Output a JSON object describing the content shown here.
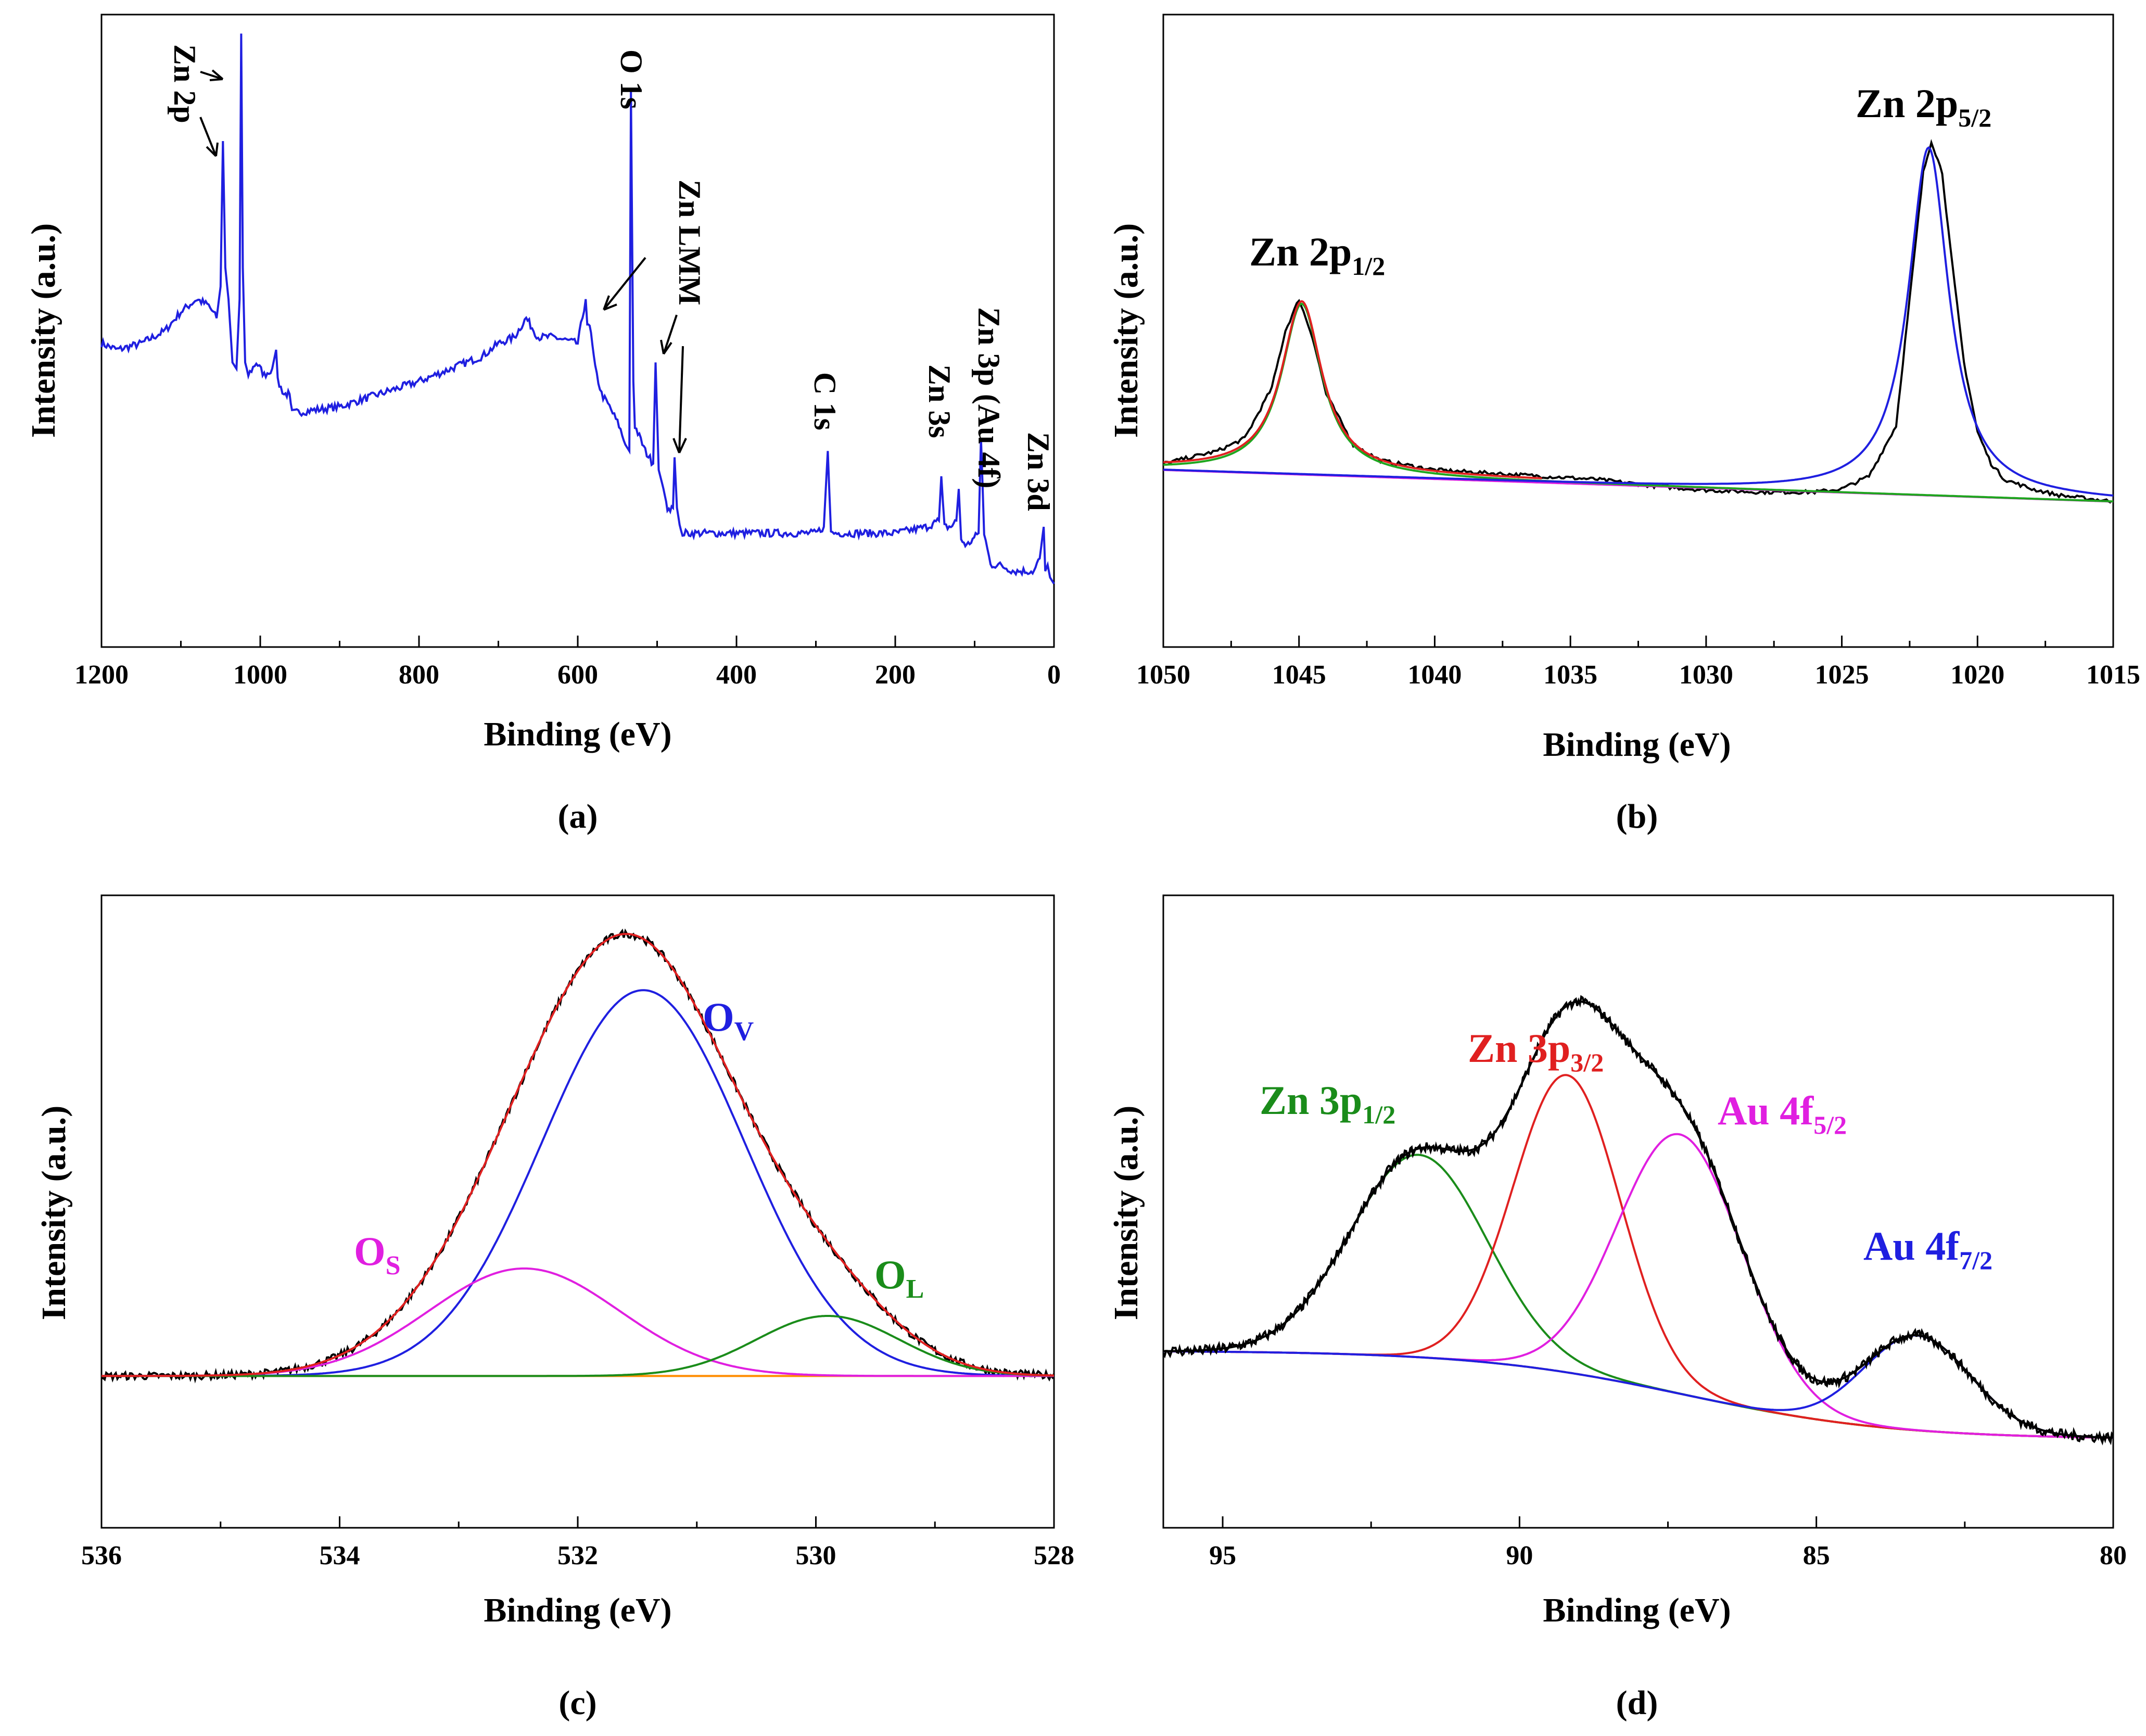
{
  "chart_data": [
    {
      "id": "a",
      "type": "line",
      "panel_label": "(a)",
      "title": "",
      "xlabel": "Binding (eV)",
      "ylabel": "Intensity (a.u.)",
      "xlim": [
        1200,
        0
      ],
      "x_ticks": [
        "1200",
        "1000",
        "800",
        "600",
        "400",
        "200",
        "0"
      ],
      "x_tick_values": [
        1200,
        1000,
        800,
        600,
        400,
        200,
        0
      ],
      "ylim": [
        0,
        100
      ],
      "y_ticks_labeled": false,
      "series": [
        {
          "name": "survey",
          "color": "#1f1fe0",
          "points": [
            [
              1200,
              48
            ],
            [
              1180,
              47
            ],
            [
              1150,
              48
            ],
            [
              1120,
              50
            ],
            [
              1100,
              53
            ],
            [
              1080,
              55
            ],
            [
              1065,
              54
            ],
            [
              1055,
              52
            ],
            [
              1050,
              57
            ],
            [
              1047,
              80
            ],
            [
              1044,
              60
            ],
            [
              1040,
              55
            ],
            [
              1035,
              45
            ],
            [
              1030,
              44
            ],
            [
              1026,
              55
            ],
            [
              1024,
              97
            ],
            [
              1022,
              60
            ],
            [
              1019,
              45
            ],
            [
              1015,
              43
            ],
            [
              1005,
              45
            ],
            [
              995,
              43
            ],
            [
              985,
              44
            ],
            [
              980,
              47
            ],
            [
              978,
              42
            ],
            [
              970,
              40
            ],
            [
              963,
              40
            ],
            [
              960,
              37
            ],
            [
              900,
              38
            ],
            [
              850,
              40
            ],
            [
              800,
              42
            ],
            [
              760,
              44
            ],
            [
              720,
              46
            ],
            [
              700,
              48
            ],
            [
              680,
              49
            ],
            [
              665,
              52
            ],
            [
              650,
              49
            ],
            [
              630,
              49
            ],
            [
              600,
              48
            ],
            [
              590,
              55
            ],
            [
              588,
              51
            ],
            [
              585,
              51
            ],
            [
              578,
              44
            ],
            [
              570,
              40
            ],
            [
              560,
              38
            ],
            [
              548,
              35
            ],
            [
              540,
              32
            ],
            [
              535,
              31
            ],
            [
              533,
              88
            ],
            [
              530,
              42
            ],
            [
              528,
              35
            ],
            [
              515,
              31
            ],
            [
              505,
              29
            ],
            [
              502,
              45
            ],
            [
              498,
              28
            ],
            [
              492,
              25
            ],
            [
              487,
              22
            ],
            [
              480,
              22
            ],
            [
              478,
              30
            ],
            [
              475,
              22
            ],
            [
              470,
              18
            ],
            [
              450,
              18
            ],
            [
              400,
              18
            ],
            [
              350,
              18
            ],
            [
              300,
              18
            ],
            [
              290,
              19
            ],
            [
              285,
              31
            ],
            [
              281,
              18
            ],
            [
              250,
              18
            ],
            [
              200,
              18
            ],
            [
              160,
              19
            ],
            [
              145,
              20
            ],
            [
              142,
              27
            ],
            [
              138,
              19
            ],
            [
              130,
              19
            ],
            [
              123,
              20
            ],
            [
              120,
              25
            ],
            [
              117,
              17
            ],
            [
              110,
              16
            ],
            [
              95,
              18
            ],
            [
              92,
              33
            ],
            [
              88,
              18
            ],
            [
              80,
              13
            ],
            [
              70,
              13
            ],
            [
              50,
              12
            ],
            [
              25,
              12
            ],
            [
              18,
              14
            ],
            [
              13,
              19
            ],
            [
              11,
              12
            ],
            [
              8,
              13
            ],
            [
              5,
              11
            ],
            [
              0,
              10
            ]
          ]
        }
      ],
      "annotations": [
        "Zn 2p",
        "O 1s",
        "Zn LMM",
        "C 1s",
        "Zn 3s",
        "Zn 3p (Au 4f)",
        "Zn 3d"
      ]
    },
    {
      "id": "b",
      "type": "line",
      "panel_label": "(b)",
      "title": "",
      "xlabel": "Binding (eV)",
      "ylabel": "Intensity (a.u.)",
      "xlim": [
        1050,
        1015
      ],
      "x_ticks": [
        "1050",
        "1045",
        "1040",
        "1035",
        "1030",
        "1025",
        "1020",
        "1015"
      ],
      "x_tick_values": [
        1050,
        1045,
        1040,
        1035,
        1030,
        1025,
        1020,
        1015
      ],
      "ylim": [
        0,
        100
      ],
      "y_ticks_labeled": false,
      "labels": {
        "zn2p12_main": "Zn 2p",
        "zn2p12_sub": "1/2",
        "zn2p52_main": "Zn 2p",
        "zn2p52_sub": "5/2"
      },
      "series": [
        {
          "name": "raw",
          "color": "#000000",
          "points": [
            [
              1050,
              29
            ],
            [
              1048,
              31
            ],
            [
              1047,
              33
            ],
            [
              1046,
              41
            ],
            [
              1045.5,
              50
            ],
            [
              1045,
              55
            ],
            [
              1044.5,
              49
            ],
            [
              1044,
              40
            ],
            [
              1043,
              32
            ],
            [
              1042,
              29.5
            ],
            [
              1040,
              28
            ],
            [
              1038,
              27.5
            ],
            [
              1036,
              27
            ],
            [
              1034,
              26.5
            ],
            [
              1032,
              25.5
            ],
            [
              1030,
              24.8
            ],
            [
              1028,
              24.5
            ],
            [
              1026,
              24.5
            ],
            [
              1025,
              25
            ],
            [
              1024,
              27
            ],
            [
              1023,
              35
            ],
            [
              1022.5,
              55
            ],
            [
              1022,
              75
            ],
            [
              1021.7,
              80
            ],
            [
              1021.3,
              75
            ],
            [
              1021,
              63
            ],
            [
              1020.5,
              45
            ],
            [
              1020,
              34
            ],
            [
              1019.5,
              29
            ],
            [
              1019,
              26.5
            ],
            [
              1018,
              25
            ],
            [
              1017,
              24
            ],
            [
              1016,
              23.5
            ],
            [
              1015,
              23
            ]
          ]
        },
        {
          "name": "Zn 2p1/2 fit",
          "color": "#1fa61f",
          "peak": {
            "center": 1044.9,
            "height": 27,
            "width": 0.9
          }
        },
        {
          "name": "Zn 2p5/2 fit",
          "color": "#1f1fe0",
          "peak": {
            "center": 1021.8,
            "height": 55,
            "width": 0.9
          }
        },
        {
          "name": "envelope",
          "color": "#e02020"
        },
        {
          "name": "background",
          "color": "#e01fe0"
        }
      ],
      "background": {
        "left": 28,
        "right": 23
      }
    },
    {
      "id": "c",
      "type": "line",
      "panel_label": "(c)",
      "title": "",
      "xlabel": "Binding (eV)",
      "ylabel": "Intensity (a.u.)",
      "xlim": [
        536,
        528
      ],
      "x_ticks": [
        "536",
        "534",
        "532",
        "530",
        "528"
      ],
      "x_tick_values": [
        536,
        534,
        532,
        530,
        528
      ],
      "ylim": [
        0,
        100
      ],
      "y_ticks_labeled": false,
      "labels": {
        "ov_main": "O",
        "ov_sub": "V",
        "os_main": "O",
        "os_sub": "S",
        "ol_main": "O",
        "ol_sub": "L"
      },
      "baseline": 24,
      "series": [
        {
          "name": "O_V",
          "color": "#1f1fe0",
          "peak": {
            "center": 531.45,
            "height": 61,
            "width": 0.85
          }
        },
        {
          "name": "O_S",
          "color": "#e01fe0",
          "peak": {
            "center": 532.45,
            "height": 17,
            "width": 0.8
          }
        },
        {
          "name": "O_L",
          "color": "#1a8c1a",
          "peak": {
            "center": 529.9,
            "height": 9.5,
            "width": 0.6
          }
        },
        {
          "name": "envelope",
          "color": "#e02020"
        },
        {
          "name": "raw",
          "color": "#000000"
        },
        {
          "name": "baseline",
          "color": "#ff8c00"
        }
      ]
    },
    {
      "id": "d",
      "type": "line",
      "panel_label": "(d)",
      "title": "",
      "xlabel": "Binding (eV)",
      "ylabel": "Intensity (a.u.)",
      "xlim": [
        96,
        80
      ],
      "x_ticks": [
        "95",
        "90",
        "85",
        "80"
      ],
      "x_tick_values": [
        95,
        90,
        85,
        80
      ],
      "ylim": [
        0,
        100
      ],
      "y_ticks_labeled": false,
      "labels": {
        "zn3p12_main": "Zn 3p",
        "zn3p12_sub": "1/2",
        "zn3p32_main": "Zn 3p",
        "zn3p32_sub": "3/2",
        "au4f52_main": "Au 4f",
        "au4f52_sub": "5/2",
        "au4f72_main": "Au 4f",
        "au4f72_sub": "7/2"
      },
      "background": {
        "left": 28,
        "right": 14
      },
      "series": [
        {
          "name": "Zn 3p1/2",
          "color": "#1a8c1a",
          "peak": {
            "center": 91.7,
            "height": 32,
            "width": 1.15
          }
        },
        {
          "name": "Zn 3p3/2",
          "color": "#e02020",
          "peak": {
            "center": 89.2,
            "height": 47,
            "width": 0.9
          }
        },
        {
          "name": "Au 4f5/2",
          "color": "#e01fe0",
          "peak": {
            "center": 87.3,
            "height": 41,
            "width": 1.05
          }
        },
        {
          "name": "Au 4f7/2",
          "color": "#1f1fe0",
          "peak": {
            "center": 83.3,
            "height": 15,
            "width": 0.9
          }
        },
        {
          "name": "envelope",
          "color": "#000000"
        },
        {
          "name": "baseline",
          "color": "#ff8c00"
        }
      ]
    }
  ]
}
